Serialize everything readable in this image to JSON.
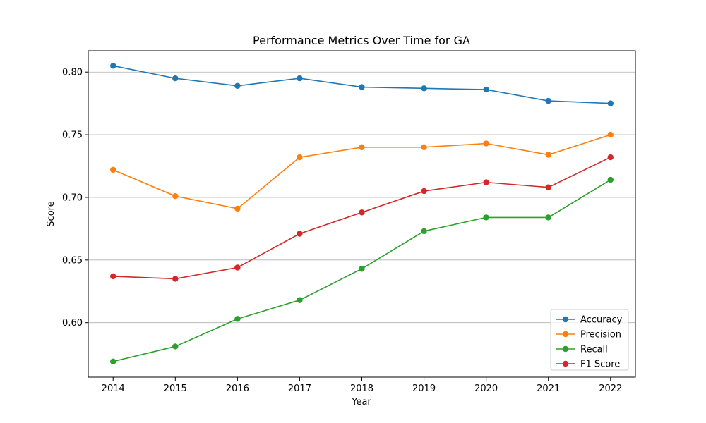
{
  "chart_data": {
    "type": "line",
    "title": "Performance Metrics Over Time for GA",
    "xlabel": "Year",
    "ylabel": "Score",
    "x": [
      "2014",
      "2015",
      "2016",
      "2017",
      "2018",
      "2019",
      "2020",
      "2021",
      "2022"
    ],
    "xlim": [
      2013.6,
      2022.4
    ],
    "ylim": [
      0.5565,
      0.817
    ],
    "yticks": [
      "0.60",
      "0.65",
      "0.70",
      "0.75",
      "0.80"
    ],
    "grid": "horizontal",
    "legend_position": "lower-right",
    "series": [
      {
        "name": "Accuracy",
        "color": "#1f77b4",
        "values": [
          0.805,
          0.795,
          0.789,
          0.795,
          0.788,
          0.787,
          0.786,
          0.777,
          0.775
        ]
      },
      {
        "name": "Precision",
        "color": "#ff7f0e",
        "values": [
          0.722,
          0.701,
          0.691,
          0.732,
          0.74,
          0.74,
          0.743,
          0.734,
          0.75
        ]
      },
      {
        "name": "Recall",
        "color": "#2ca02c",
        "values": [
          0.569,
          0.581,
          0.603,
          0.618,
          0.643,
          0.673,
          0.684,
          0.684,
          0.714
        ]
      },
      {
        "name": "F1 Score",
        "color": "#d62728",
        "values": [
          0.637,
          0.635,
          0.644,
          0.671,
          0.688,
          0.705,
          0.712,
          0.708,
          0.732
        ]
      }
    ]
  }
}
